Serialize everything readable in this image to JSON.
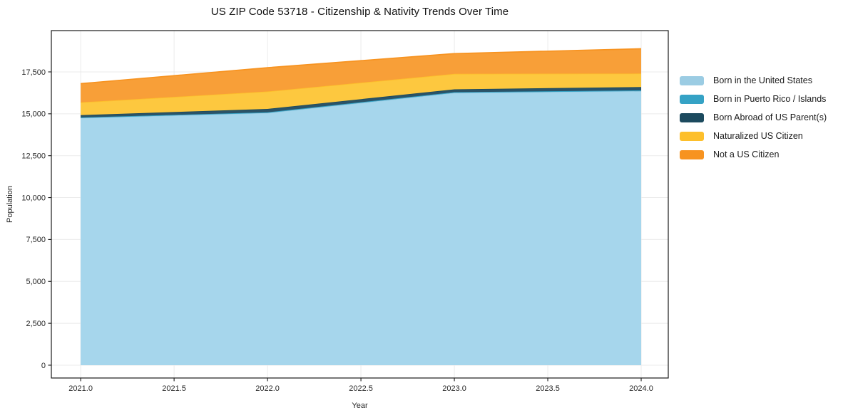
{
  "figure": {
    "title": "US ZIP Code 53718 - Citizenship & Nativity Trends Over Time",
    "background": "#ffffff"
  },
  "chart_data": {
    "type": "area",
    "stacked": true,
    "title": "US ZIP Code 53718 - Citizenship & Nativity Trends Over Time",
    "xlabel": "Year",
    "ylabel": "Population",
    "x": [
      2021,
      2022,
      2023,
      2024
    ],
    "series": [
      {
        "name": "Born in the United States",
        "values": [
          14750,
          15050,
          16250,
          16350
        ],
        "color": "#9BCCE3",
        "fill": "#A6D6EC"
      },
      {
        "name": "Born in Puerto Rico / Islands",
        "values": [
          30,
          40,
          40,
          50
        ],
        "color": "#35A2C5",
        "fill": "#49ACCB"
      },
      {
        "name": "Born Abroad of US Parent(s)",
        "values": [
          140,
          200,
          170,
          200
        ],
        "color": "#1C4A5E",
        "fill": "#2A5368"
      },
      {
        "name": "Naturalized US Citizen",
        "values": [
          760,
          1040,
          920,
          800
        ],
        "color": "#FDBF2B",
        "fill": "#FDC83F"
      },
      {
        "name": "Not a US Citizen",
        "values": [
          1120,
          1420,
          1210,
          1480
        ],
        "color": "#F79320",
        "fill": "#F89F38"
      }
    ],
    "stack_totals": [
      16800,
      17750,
      18590,
      18880
    ],
    "xlim": [
      2020.843,
      2024.145
    ],
    "ylim": [
      -765,
      19963
    ],
    "xticks": {
      "values": [
        2021.0,
        2021.5,
        2022.0,
        2022.5,
        2023.0,
        2023.5,
        2024.0
      ],
      "labels": [
        "2021.0",
        "2021.5",
        "2022.0",
        "2022.5",
        "2023.0",
        "2023.5",
        "2024.0"
      ]
    },
    "yticks": {
      "values": [
        0,
        2500,
        5000,
        7500,
        10000,
        12500,
        15000,
        17500
      ],
      "labels": [
        "0",
        "2,500",
        "5,000",
        "7,500",
        "10,000",
        "12,500",
        "15,000",
        "17,500"
      ]
    },
    "grid": true,
    "grid_color": "#ebebeb",
    "spine_color": "#1a1a1a",
    "tick_label_color": "#262626",
    "legend_position": "right-outside"
  }
}
